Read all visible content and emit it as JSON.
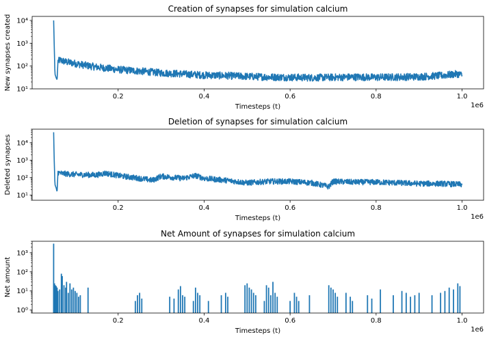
{
  "chart_data": [
    {
      "type": "line",
      "title": "Creation of synapses for simulation calcium",
      "xlabel": "Timesteps (t)",
      "ylabel": "New synapses created",
      "xlim": [
        0,
        1050000
      ],
      "ylim": [
        10,
        15000
      ],
      "yscale": "log",
      "x_offset_label": "1e6",
      "x_ticks": [
        200000,
        400000,
        600000,
        800000,
        1000000
      ],
      "x_tick_labels": [
        "0.2",
        "0.4",
        "0.6",
        "0.8",
        "1.0"
      ],
      "y_ticks": [
        10,
        100,
        1000,
        10000
      ],
      "y_tick_labels": [
        "10¹",
        "10²",
        "10³",
        "10⁴"
      ],
      "series_color": "#1f77b4",
      "series": [
        {
          "x": [
            50000,
            51000,
            53000,
            56000,
            58000,
            60000,
            65000,
            70000,
            80000,
            100000,
            120000,
            150000,
            200000,
            250000,
            300000,
            350000,
            400000,
            450000,
            500000,
            550000,
            600000,
            650000,
            700000,
            750000,
            800000,
            850000,
            900000,
            950000,
            990000,
            1000000
          ],
          "y": [
            10000,
            1500,
            45,
            30,
            25,
            160,
            180,
            170,
            150,
            130,
            110,
            90,
            70,
            60,
            50,
            45,
            40,
            38,
            35,
            33,
            32,
            31,
            32,
            33,
            32,
            33,
            34,
            38,
            45,
            40
          ]
        }
      ]
    },
    {
      "type": "line",
      "title": "Deletion of synapses for simulation calcium",
      "xlabel": "Timesteps (t)",
      "ylabel": "Deleted synapses",
      "xlim": [
        0,
        1050000
      ],
      "ylim": [
        5,
        60000
      ],
      "yscale": "log",
      "x_offset_label": "1e6",
      "x_ticks": [
        200000,
        400000,
        600000,
        800000,
        1000000
      ],
      "x_tick_labels": [
        "0.2",
        "0.4",
        "0.6",
        "0.8",
        "1.0"
      ],
      "y_ticks": [
        10,
        100,
        1000,
        10000
      ],
      "y_tick_labels": [
        "10¹",
        "10²",
        "10³",
        "10⁴"
      ],
      "series_color": "#1f77b4",
      "series": [
        {
          "x": [
            50000,
            51000,
            53000,
            56000,
            58000,
            60000,
            65000,
            70000,
            100000,
            150000,
            170000,
            200000,
            250000,
            280000,
            300000,
            350000,
            380000,
            400000,
            450000,
            500000,
            550000,
            600000,
            650000,
            690000,
            700000,
            750000,
            800000,
            850000,
            900000,
            950000,
            1000000
          ],
          "y": [
            40000,
            2000,
            40,
            25,
            15,
            200,
            180,
            170,
            150,
            140,
            180,
            130,
            90,
            70,
            120,
            90,
            130,
            90,
            70,
            50,
            60,
            60,
            50,
            30,
            60,
            55,
            55,
            50,
            45,
            45,
            40
          ]
        }
      ]
    },
    {
      "type": "bar",
      "title": "Net Amount of synapses for simulation calcium",
      "xlabel": "Timesteps (t)",
      "ylabel": "Net amount",
      "xlim": [
        0,
        1050000
      ],
      "ylim": [
        0.7,
        4000
      ],
      "yscale": "log",
      "x_offset_label": "1e6",
      "x_ticks": [
        200000,
        400000,
        600000,
        800000,
        1000000
      ],
      "x_tick_labels": [
        "0.2",
        "0.4",
        "0.6",
        "0.8",
        "1.0"
      ],
      "y_ticks": [
        1,
        10,
        100,
        1000
      ],
      "y_tick_labels": [
        "10⁰",
        "10¹",
        "10²",
        "10³"
      ],
      "series_color": "#1f77b4",
      "series": [
        {
          "x": [
            50000,
            52000,
            54000,
            56000,
            58000,
            60000,
            64000,
            68000,
            70000,
            74000,
            78000,
            80000,
            84000,
            88000,
            92000,
            96000,
            100000,
            104000,
            108000,
            112000,
            130000,
            240000,
            245000,
            250000,
            255000,
            320000,
            330000,
            340000,
            345000,
            350000,
            355000,
            375000,
            380000,
            385000,
            390000,
            410000,
            440000,
            450000,
            455000,
            495000,
            500000,
            505000,
            510000,
            515000,
            520000,
            540000,
            545000,
            550000,
            555000,
            560000,
            565000,
            570000,
            600000,
            610000,
            615000,
            620000,
            645000,
            690000,
            695000,
            700000,
            705000,
            710000,
            730000,
            740000,
            745000,
            780000,
            790000,
            810000,
            840000,
            860000,
            870000,
            880000,
            890000,
            900000,
            930000,
            950000,
            960000,
            970000,
            980000,
            990000,
            995000
          ],
          "y": [
            3000,
            25,
            20,
            18,
            15,
            10,
            12,
            80,
            60,
            20,
            15,
            30,
            8,
            25,
            12,
            15,
            10,
            8,
            5,
            6,
            15,
            3,
            6,
            8,
            4,
            5,
            4,
            12,
            18,
            6,
            5,
            3,
            15,
            8,
            6,
            3,
            6,
            8,
            5,
            20,
            25,
            15,
            12,
            8,
            6,
            3,
            20,
            15,
            6,
            30,
            8,
            5,
            3,
            8,
            5,
            3,
            6,
            20,
            15,
            12,
            8,
            5,
            8,
            5,
            3,
            6,
            4,
            12,
            6,
            10,
            8,
            5,
            6,
            8,
            6,
            8,
            10,
            15,
            12,
            25,
            18
          ]
        }
      ]
    }
  ]
}
